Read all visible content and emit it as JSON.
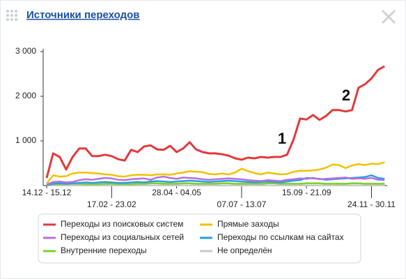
{
  "header": {
    "title": "Источники переходов"
  },
  "chart_data": {
    "type": "line",
    "categories": [
      "14.12 - 15.12",
      null,
      null,
      null,
      null,
      null,
      null,
      null,
      null,
      null,
      "17.02 - 23.02",
      null,
      null,
      null,
      null,
      null,
      null,
      null,
      null,
      null,
      "28.04 - 04.05",
      null,
      null,
      null,
      null,
      null,
      null,
      null,
      null,
      null,
      "07.07 - 13.07",
      null,
      null,
      null,
      null,
      null,
      null,
      null,
      null,
      null,
      "15.09 - 21.09",
      null,
      null,
      null,
      null,
      null,
      null,
      null,
      null,
      null,
      "24.11 - 30.11",
      null,
      null
    ],
    "series": [
      {
        "name": "Переходы из поисковых систем",
        "color": "#e3393c",
        "values": [
          170,
          720,
          640,
          360,
          640,
          830,
          830,
          660,
          660,
          690,
          660,
          590,
          560,
          800,
          750,
          875,
          900,
          810,
          800,
          890,
          750,
          830,
          970,
          810,
          750,
          720,
          720,
          700,
          670,
          610,
          580,
          625,
          610,
          640,
          625,
          640,
          640,
          690,
          1030,
          1500,
          1480,
          1580,
          1470,
          1560,
          1690,
          1690,
          1660,
          1690,
          2190,
          2270,
          2400,
          2590,
          2670
        ]
      },
      {
        "name": "Прямые заходы",
        "color": "#f2c100",
        "values": [
          40,
          230,
          200,
          210,
          270,
          290,
          290,
          280,
          270,
          250,
          240,
          210,
          200,
          230,
          240,
          240,
          230,
          250,
          250,
          240,
          270,
          290,
          320,
          310,
          300,
          260,
          250,
          270,
          250,
          290,
          380,
          320,
          280,
          250,
          290,
          270,
          250,
          260,
          310,
          330,
          330,
          340,
          360,
          400,
          470,
          460,
          390,
          450,
          480,
          460,
          490,
          480,
          520
        ]
      },
      {
        "name": "Переходы из социальных сетей",
        "color": "#b86ee0",
        "values": [
          20,
          80,
          90,
          70,
          80,
          120,
          140,
          130,
          150,
          170,
          160,
          130,
          120,
          140,
          150,
          160,
          130,
          180,
          200,
          170,
          150,
          180,
          170,
          160,
          140,
          130,
          140,
          150,
          160,
          150,
          140,
          120,
          110,
          100,
          120,
          110,
          100,
          130,
          140,
          160,
          150,
          170,
          140,
          150,
          160,
          170,
          180,
          150,
          160,
          150,
          170,
          130,
          120
        ]
      },
      {
        "name": "Переходы по ссылкам на сайтах",
        "color": "#2a9fe0",
        "values": [
          10,
          40,
          50,
          40,
          50,
          60,
          70,
          60,
          70,
          80,
          70,
          60,
          60,
          70,
          80,
          70,
          90,
          100,
          90,
          80,
          90,
          100,
          110,
          100,
          90,
          80,
          90,
          100,
          110,
          100,
          90,
          80,
          70,
          80,
          90,
          80,
          70,
          90,
          110,
          120,
          170,
          160,
          150,
          130,
          140,
          150,
          160,
          170,
          180,
          190,
          230,
          170,
          150
        ]
      },
      {
        "name": "Внутренние переходы",
        "color": "#7fd02a",
        "values": [
          10,
          30,
          30,
          30,
          40,
          40,
          30,
          30,
          30,
          40,
          40,
          30,
          30,
          30,
          40,
          40,
          50,
          50,
          40,
          40,
          40,
          50,
          50,
          40,
          40,
          40,
          40,
          50,
          50,
          40,
          40,
          40,
          40,
          40,
          50,
          50,
          40,
          40,
          40,
          40,
          50,
          50,
          50,
          40,
          40,
          40,
          40,
          50,
          50,
          40,
          40,
          40,
          40
        ]
      },
      {
        "name": "Не определён",
        "color": "#c8c8c8",
        "values": [
          5,
          5,
          5,
          5,
          5,
          5,
          5,
          5,
          5,
          5,
          5,
          5,
          5,
          5,
          5,
          5,
          5,
          5,
          5,
          5,
          5,
          5,
          5,
          5,
          5,
          5,
          5,
          5,
          5,
          5,
          5,
          5,
          5,
          5,
          5,
          5,
          5,
          5,
          5,
          5,
          5,
          5,
          5,
          5,
          5,
          5,
          5,
          5,
          5,
          5,
          5,
          5,
          5
        ]
      }
    ],
    "ylim": [
      0,
      3000
    ],
    "yticks": [
      {
        "value": 1000,
        "label": "1 000"
      },
      {
        "value": 2000,
        "label": "2 000"
      },
      {
        "value": 3000,
        "label": "3 000"
      }
    ],
    "annotations": [
      "1",
      "2"
    ],
    "legend": "bottom"
  }
}
